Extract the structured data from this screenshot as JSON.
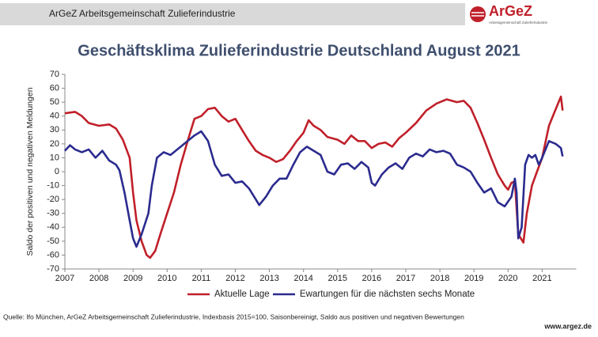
{
  "header": {
    "title": "ArGeZ Arbeitsgemeinschaft Zulieferindustrie",
    "logo": "ArGeZ",
    "logo_subtitle": "Arbeitsgemeinschaft Zulieferindustrie"
  },
  "footer": {
    "url": "www.argez.de"
  },
  "chart_data": {
    "type": "line",
    "title": "Geschäftsklima Zulieferindustrie Deutschland August 2021",
    "y_label": "Saldo der positiven und negativen Meldungen",
    "source": "Quelle: Ifo München, ArGeZ Arbeitsgemeinschaft Zulieferindustrie, Indexbasis 2015=100, Saisonbereinigt, Saldo aus positiven und negativen Bewertungen",
    "xlim": [
      2007,
      2022
    ],
    "xticks": [
      2007,
      2008,
      2009,
      2010,
      2011,
      2012,
      2013,
      2014,
      2015,
      2016,
      2017,
      2018,
      2019,
      2020,
      2021
    ],
    "ylim": [
      -70,
      70
    ],
    "yticks": [
      -70,
      -60,
      -50,
      -40,
      -30,
      -20,
      -10,
      0,
      10,
      20,
      30,
      40,
      50,
      60,
      70
    ],
    "grid": false,
    "legend": "bottom",
    "series": [
      {
        "name": "Aktuelle Lage",
        "color": "#c0202a",
        "x": [
          2007.0,
          2007.3,
          2007.5,
          2007.7,
          2008.0,
          2008.3,
          2008.5,
          2008.7,
          2008.9,
          2009.0,
          2009.1,
          2009.25,
          2009.4,
          2009.5,
          2009.65,
          2009.8,
          2010.0,
          2010.2,
          2010.4,
          2010.6,
          2010.8,
          2011.0,
          2011.2,
          2011.4,
          2011.6,
          2011.8,
          2012.0,
          2012.2,
          2012.4,
          2012.6,
          2012.8,
          2013.0,
          2013.2,
          2013.4,
          2013.6,
          2013.8,
          2014.0,
          2014.15,
          2014.3,
          2014.5,
          2014.7,
          2015.0,
          2015.2,
          2015.4,
          2015.6,
          2015.8,
          2016.0,
          2016.2,
          2016.4,
          2016.6,
          2016.8,
          2017.0,
          2017.3,
          2017.6,
          2017.9,
          2018.2,
          2018.5,
          2018.7,
          2018.9,
          2019.1,
          2019.3,
          2019.5,
          2019.7,
          2019.9,
          2020.0,
          2020.1,
          2020.2,
          2020.3,
          2020.45,
          2020.55,
          2020.7,
          2020.85,
          2021.0,
          2021.2,
          2021.4,
          2021.55,
          2021.6
        ],
        "values": [
          42,
          43,
          40,
          35,
          33,
          34,
          31,
          23,
          10,
          -15,
          -35,
          -50,
          -60,
          -62,
          -57,
          -45,
          -30,
          -15,
          5,
          22,
          38,
          40,
          45,
          46,
          40,
          36,
          38,
          30,
          22,
          15,
          12,
          10,
          7,
          9,
          15,
          22,
          28,
          37,
          33,
          30,
          25,
          23,
          20,
          26,
          22,
          22,
          17,
          20,
          21,
          18,
          24,
          28,
          35,
          44,
          49,
          52,
          50,
          51,
          46,
          35,
          23,
          10,
          -2,
          -10,
          -13,
          -8,
          -7,
          -45,
          -51,
          -30,
          -10,
          0,
          10,
          33,
          45,
          54,
          44
        ]
      },
      {
        "name": "Ewartungen für die nächsten sechs Monate",
        "color": "#2b2b8f",
        "x": [
          2007.0,
          2007.15,
          2007.3,
          2007.5,
          2007.7,
          2007.9,
          2008.1,
          2008.3,
          2008.5,
          2008.6,
          2008.75,
          2008.9,
          2009.0,
          2009.1,
          2009.25,
          2009.45,
          2009.55,
          2009.7,
          2009.9,
          2010.1,
          2010.4,
          2010.6,
          2010.8,
          2011.0,
          2011.2,
          2011.4,
          2011.6,
          2011.8,
          2012.0,
          2012.2,
          2012.4,
          2012.6,
          2012.7,
          2012.9,
          2013.1,
          2013.3,
          2013.5,
          2013.7,
          2013.9,
          2014.1,
          2014.3,
          2014.5,
          2014.7,
          2014.9,
          2015.1,
          2015.3,
          2015.5,
          2015.7,
          2015.9,
          2016.0,
          2016.1,
          2016.3,
          2016.5,
          2016.7,
          2016.9,
          2017.1,
          2017.3,
          2017.5,
          2017.7,
          2017.9,
          2018.1,
          2018.3,
          2018.5,
          2018.7,
          2018.9,
          2019.1,
          2019.3,
          2019.5,
          2019.7,
          2019.9,
          2020.1,
          2020.2,
          2020.25,
          2020.3,
          2020.4,
          2020.5,
          2020.6,
          2020.7,
          2020.8,
          2020.9,
          2021.0,
          2021.2,
          2021.4,
          2021.55,
          2021.6
        ],
        "values": [
          15,
          19,
          16,
          14,
          16,
          10,
          15,
          8,
          5,
          1,
          -15,
          -35,
          -48,
          -54,
          -45,
          -30,
          -10,
          10,
          14,
          12,
          18,
          22,
          26,
          29,
          22,
          5,
          -3,
          -2,
          -8,
          -7,
          -12,
          -20,
          -24,
          -18,
          -10,
          -5,
          -5,
          5,
          14,
          18,
          15,
          12,
          0,
          -2,
          5,
          6,
          2,
          7,
          3,
          -8,
          -10,
          -2,
          3,
          6,
          2,
          10,
          13,
          11,
          16,
          14,
          15,
          13,
          5,
          3,
          0,
          -8,
          -15,
          -12,
          -22,
          -25,
          -18,
          -5,
          -15,
          -48,
          -40,
          5,
          12,
          10,
          12,
          5,
          10,
          22,
          20,
          17,
          11
        ]
      }
    ]
  }
}
